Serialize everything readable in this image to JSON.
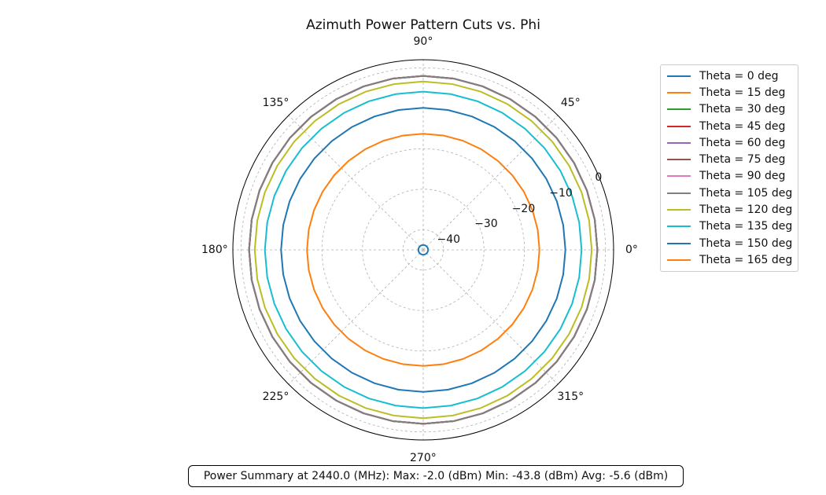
{
  "chart_data": {
    "type": "line",
    "projection": "polar",
    "title": "Azimuth Power Pattern Cuts vs. Phi",
    "angle_unit": "deg",
    "angle_ticks": [
      "0°",
      "45°",
      "90°",
      "135°",
      "180°",
      "225°",
      "270°",
      "315°"
    ],
    "angle_tick_values": [
      0,
      45,
      90,
      135,
      180,
      225,
      270,
      315
    ],
    "radial_ticks": [
      0,
      -10,
      -20,
      -30,
      -40
    ],
    "radial_tick_labels": [
      "0",
      "−10",
      "−20",
      "−30",
      "−40"
    ],
    "rlim": [
      -45,
      2
    ],
    "rlabel_position": 22.5,
    "grid": true,
    "legend_position": "upper-right-outside",
    "phi": [
      0,
      10,
      20,
      30,
      40,
      50,
      60,
      70,
      80,
      90,
      100,
      110,
      120,
      130,
      140,
      150,
      160,
      170,
      180,
      190,
      200,
      210,
      220,
      230,
      240,
      250,
      260,
      270,
      280,
      290,
      300,
      310,
      320,
      330,
      340,
      350,
      360
    ],
    "series": [
      {
        "name": "Theta = 0 deg",
        "color": "#1f77b4",
        "value": -43.8
      },
      {
        "name": "Theta = 15 deg",
        "color": "#ff7f0e",
        "value": -2.0
      },
      {
        "name": "Theta = 30 deg",
        "color": "#2ca02c",
        "value": -2.0
      },
      {
        "name": "Theta = 45 deg",
        "color": "#d62728",
        "value": -2.0
      },
      {
        "name": "Theta = 60 deg",
        "color": "#9467bd",
        "value": -2.0
      },
      {
        "name": "Theta = 75 deg",
        "color": "#8c564b",
        "value": -2.0
      },
      {
        "name": "Theta = 90 deg",
        "color": "#e377c2",
        "value": -2.0
      },
      {
        "name": "Theta = 105 deg",
        "color": "#7f7f7f",
        "value": -2.0
      },
      {
        "name": "Theta = 120 deg",
        "color": "#bcbd22",
        "value": -3.4
      },
      {
        "name": "Theta = 135 deg",
        "color": "#17becf",
        "value": -5.9
      },
      {
        "name": "Theta = 150 deg",
        "color": "#1f77b4",
        "value": -9.9
      },
      {
        "name": "Theta = 165 deg",
        "color": "#ff7f0e",
        "value": -16.3
      }
    ]
  },
  "summary": {
    "text": "Power Summary at 2440.0 (MHz): Max: -2.0 (dBm) Min: -43.8 (dBm) Avg: -5.6 (dBm)"
  }
}
